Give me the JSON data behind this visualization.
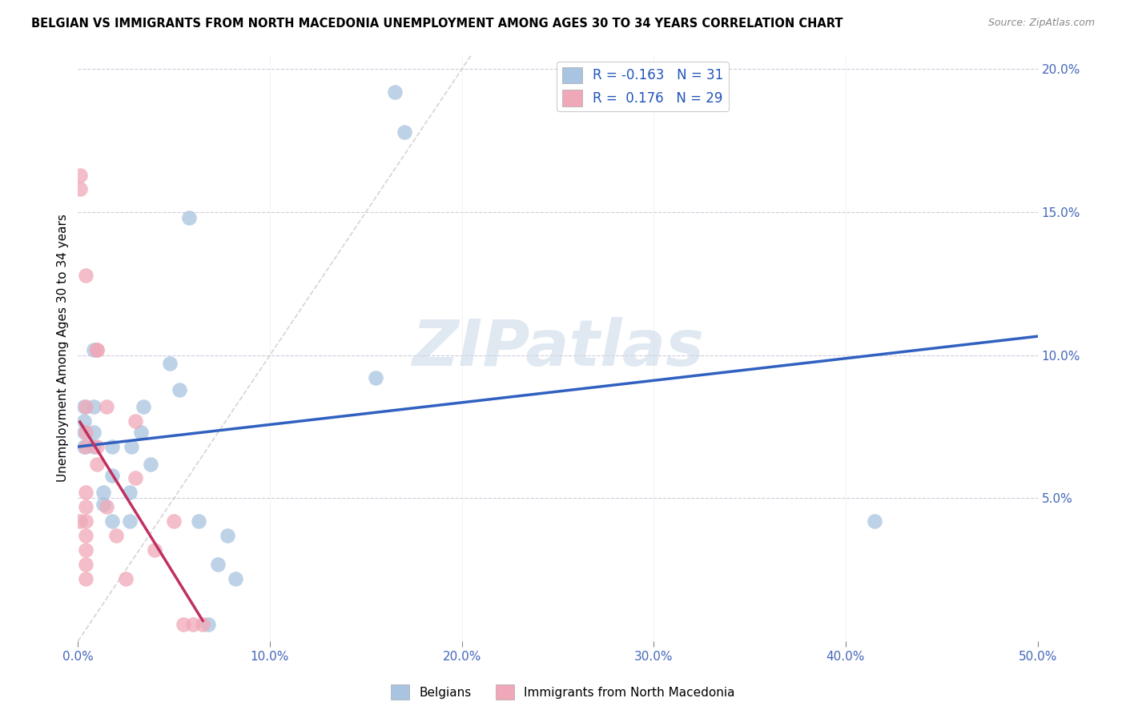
{
  "title": "BELGIAN VS IMMIGRANTS FROM NORTH MACEDONIA UNEMPLOYMENT AMONG AGES 30 TO 34 YEARS CORRELATION CHART",
  "source": "Source: ZipAtlas.com",
  "ylabel": "Unemployment Among Ages 30 to 34 years",
  "xlim": [
    0,
    0.5
  ],
  "ylim": [
    0,
    0.205
  ],
  "xtick_vals": [
    0.0,
    0.1,
    0.2,
    0.3,
    0.4,
    0.5
  ],
  "xtick_labels": [
    "0.0%",
    "10.0%",
    "20.0%",
    "30.0%",
    "40.0%",
    "50.0%"
  ],
  "ytick_vals": [
    0.05,
    0.1,
    0.15,
    0.2
  ],
  "ytick_labels": [
    "5.0%",
    "10.0%",
    "15.0%",
    "20.0%"
  ],
  "belgian_R": -0.163,
  "belgian_N": 31,
  "immigrant_R": 0.176,
  "immigrant_N": 29,
  "belgian_color": "#a8c4e0",
  "immigrant_color": "#f0a8b8",
  "trendline_belgian_color": "#3060c0",
  "trendline_immigrant_color": "#c03060",
  "diagonal_color": "#d0d0d0",
  "background_color": "#ffffff",
  "watermark": "ZIPatlas",
  "belgian_x": [
    0.003,
    0.003,
    0.003,
    0.003,
    0.008,
    0.008,
    0.008,
    0.008,
    0.013,
    0.013,
    0.018,
    0.018,
    0.018,
    0.027,
    0.027,
    0.028,
    0.033,
    0.034,
    0.038,
    0.048,
    0.053,
    0.058,
    0.063,
    0.068,
    0.073,
    0.078,
    0.082,
    0.155,
    0.165,
    0.17,
    0.415
  ],
  "belgian_y": [
    0.068,
    0.073,
    0.077,
    0.082,
    0.068,
    0.073,
    0.082,
    0.102,
    0.048,
    0.052,
    0.042,
    0.058,
    0.068,
    0.042,
    0.052,
    0.068,
    0.073,
    0.082,
    0.062,
    0.097,
    0.088,
    0.148,
    0.042,
    0.006,
    0.027,
    0.037,
    0.022,
    0.092,
    0.192,
    0.178,
    0.042
  ],
  "immigrant_x": [
    0.001,
    0.001,
    0.001,
    0.004,
    0.004,
    0.004,
    0.004,
    0.004,
    0.004,
    0.004,
    0.004,
    0.004,
    0.004,
    0.004,
    0.01,
    0.01,
    0.01,
    0.01,
    0.015,
    0.015,
    0.02,
    0.025,
    0.03,
    0.03,
    0.04,
    0.05,
    0.055,
    0.06,
    0.065
  ],
  "immigrant_y": [
    0.158,
    0.163,
    0.042,
    0.128,
    0.073,
    0.082,
    0.068,
    0.052,
    0.047,
    0.042,
    0.037,
    0.032,
    0.027,
    0.022,
    0.102,
    0.102,
    0.068,
    0.062,
    0.082,
    0.047,
    0.037,
    0.022,
    0.057,
    0.077,
    0.032,
    0.042,
    0.006,
    0.006,
    0.006
  ]
}
